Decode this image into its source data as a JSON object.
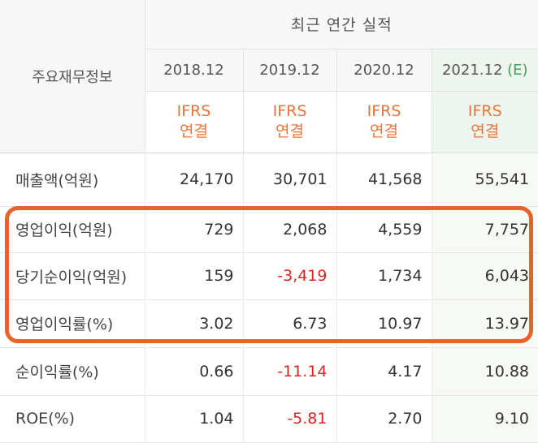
{
  "header": {
    "title": "최근 연간 실적",
    "row_label": "주요재무정보",
    "periods": [
      {
        "year": "2018.12",
        "est": "",
        "basis_line1": "IFRS",
        "basis_line2": "연결"
      },
      {
        "year": "2019.12",
        "est": "",
        "basis_line1": "IFRS",
        "basis_line2": "연결"
      },
      {
        "year": "2020.12",
        "est": "",
        "basis_line1": "IFRS",
        "basis_line2": "연결"
      },
      {
        "year": "2021.12",
        "est": "(E)",
        "basis_line1": "IFRS",
        "basis_line2": "연결"
      }
    ]
  },
  "rows": [
    {
      "label": "매출액(억원)",
      "values": [
        "24,170",
        "30,701",
        "41,568",
        "55,541"
      ],
      "negative": [
        false,
        false,
        false,
        false
      ]
    },
    {
      "label": "영업이익(억원)",
      "values": [
        "729",
        "2,068",
        "4,559",
        "7,757"
      ],
      "negative": [
        false,
        false,
        false,
        false
      ]
    },
    {
      "label": "당기순이익(억원)",
      "values": [
        "159",
        "-3,419",
        "1,734",
        "6,043"
      ],
      "negative": [
        false,
        true,
        false,
        false
      ]
    },
    {
      "label": "영업이익률(%)",
      "values": [
        "3.02",
        "6.73",
        "10.97",
        "13.97"
      ],
      "negative": [
        false,
        false,
        false,
        false
      ]
    },
    {
      "label": "순이익률(%)",
      "values": [
        "0.66",
        "-11.14",
        "4.17",
        "10.88"
      ],
      "negative": [
        false,
        true,
        false,
        false
      ]
    },
    {
      "label": "ROE(%)",
      "values": [
        "1.04",
        "-5.81",
        "2.70",
        "9.10"
      ],
      "negative": [
        false,
        true,
        false,
        false
      ]
    }
  ],
  "colors": {
    "highlight_box": "#e8622a",
    "ifrs_text": "#e8753a",
    "negative_text": "#d9251d",
    "estimate_text": "#3ca35a"
  }
}
